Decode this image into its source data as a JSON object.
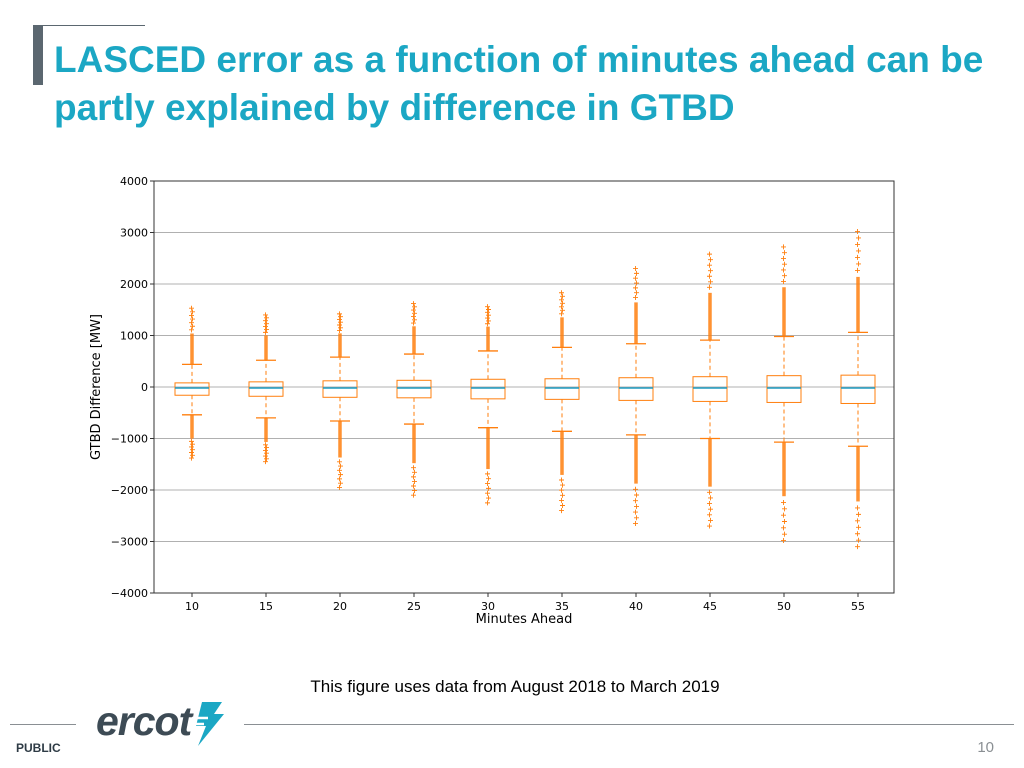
{
  "slide": {
    "title": "LASCED error as a function of minutes ahead can be partly explained by difference in GTBD",
    "caption": "This figure uses data from August 2018 to March 2019",
    "footer_label": "PUBLIC",
    "page_number": "10",
    "logo_text": "ercot",
    "colors": {
      "title": "#1ba7c4",
      "accent_bar": "#5b6770",
      "box": "#ff7f0e",
      "median": "#1f9bc0",
      "grid": "#b0b0b0"
    },
    "logo_icon": "ercot-lightning-mark-icon"
  },
  "chart_data": {
    "type": "box",
    "title": "",
    "xlabel": "Minutes Ahead",
    "ylabel": "GTBD Difference [MW]",
    "ylim": [
      -4000,
      4000
    ],
    "yticks": [
      4000,
      3000,
      2000,
      1000,
      0,
      -1000,
      -2000,
      -3000,
      -4000
    ],
    "ytick_labels": [
      "4000",
      "3000",
      "2000",
      "1000",
      "0",
      "−1000",
      "−2000",
      "−3000",
      "−4000"
    ],
    "grid": true,
    "categories": [
      "10",
      "15",
      "20",
      "25",
      "30",
      "35",
      "40",
      "45",
      "50",
      "55"
    ],
    "boxes": [
      {
        "x": "10",
        "q1": -160,
        "median": -20,
        "q3": 80,
        "whisker_low": -540,
        "whisker_high": 440,
        "outlier_max": 1530,
        "outlier_min": -1380
      },
      {
        "x": "15",
        "q1": -180,
        "median": -20,
        "q3": 100,
        "whisker_low": -600,
        "whisker_high": 520,
        "outlier_max": 1400,
        "outlier_min": -1450
      },
      {
        "x": "20",
        "q1": -200,
        "median": -20,
        "q3": 120,
        "whisker_low": -660,
        "whisker_high": 580,
        "outlier_max": 1420,
        "outlier_min": -1950
      },
      {
        "x": "25",
        "q1": -210,
        "median": -20,
        "q3": 130,
        "whisker_low": -720,
        "whisker_high": 640,
        "outlier_max": 1620,
        "outlier_min": -2100
      },
      {
        "x": "30",
        "q1": -230,
        "median": -20,
        "q3": 150,
        "whisker_low": -790,
        "whisker_high": 700,
        "outlier_max": 1560,
        "outlier_min": -2250
      },
      {
        "x": "35",
        "q1": -240,
        "median": -20,
        "q3": 160,
        "whisker_low": -860,
        "whisker_high": 770,
        "outlier_max": 1830,
        "outlier_min": -2400
      },
      {
        "x": "40",
        "q1": -260,
        "median": -20,
        "q3": 180,
        "whisker_low": -930,
        "whisker_high": 840,
        "outlier_max": 2300,
        "outlier_min": -2650
      },
      {
        "x": "45",
        "q1": -280,
        "median": -20,
        "q3": 200,
        "whisker_low": -1000,
        "whisker_high": 910,
        "outlier_max": 2580,
        "outlier_min": -2700
      },
      {
        "x": "50",
        "q1": -300,
        "median": -20,
        "q3": 220,
        "whisker_low": -1070,
        "whisker_high": 980,
        "outlier_max": 2720,
        "outlier_min": -2980
      },
      {
        "x": "55",
        "q1": -320,
        "median": -20,
        "q3": 230,
        "whisker_low": -1150,
        "whisker_high": 1060,
        "outlier_max": 3020,
        "outlier_min": -3100
      }
    ]
  }
}
